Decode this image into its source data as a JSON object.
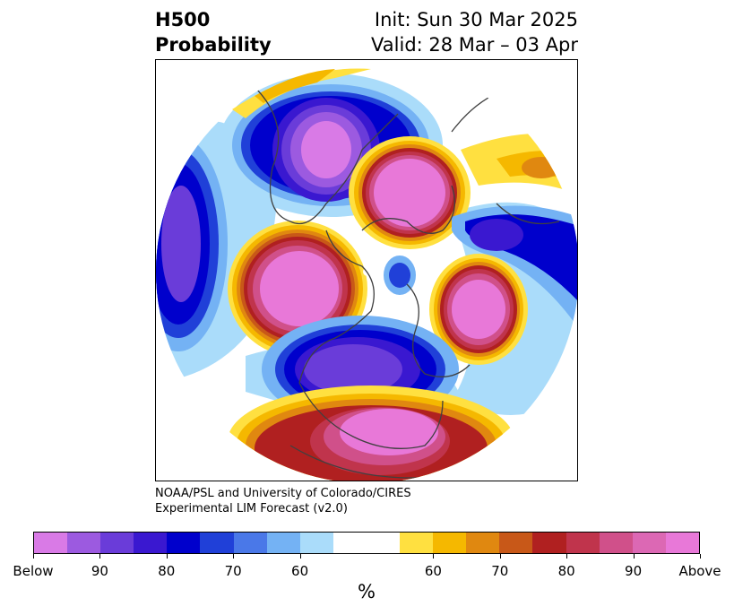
{
  "title": {
    "left_line1": "H500",
    "left_line2": "Probability",
    "right_line1": "Init: Sun 30 Mar 2025",
    "right_line2": "Valid: 28 Mar – 03 Apr"
  },
  "credit": {
    "line1": "NOAA/PSL and University of Colorado/CIRES",
    "line2": "Experimental LIM Forecast (v2.0)"
  },
  "colorbar": {
    "unit": "%",
    "colors": [
      "#d97ae6",
      "#9c5ae0",
      "#6a3cd9",
      "#3a18d0",
      "#0000cc",
      "#2040d8",
      "#4a78e8",
      "#74b2f4",
      "#aadcfa",
      "#ffffff",
      "#ffffff",
      "#ffe040",
      "#f5b800",
      "#e08810",
      "#c85818",
      "#b02020",
      "#c0344c",
      "#d0508a",
      "#dc68b4",
      "#e878d8"
    ],
    "tick_labels": [
      "Below",
      "90",
      "80",
      "70",
      "60",
      "60",
      "70",
      "80",
      "90",
      "Above"
    ]
  },
  "map": {
    "projection": "north-polar-stereographic",
    "colors": {
      "above_outer": "#ffe040",
      "above_2": "#f5b800",
      "above_3": "#e08810",
      "above_4": "#c85818",
      "above_5": "#b02020",
      "above_6": "#c0344c",
      "above_7": "#d0508a",
      "above_core": "#e878d8",
      "below_outer": "#aadcfa",
      "below_2": "#74b2f4",
      "below_3": "#2040d8",
      "below_4": "#0000cc",
      "below_5": "#3a18d0",
      "below_6": "#6a3cd9",
      "below_core": "#9c5ae0",
      "coast": "#404040"
    }
  }
}
